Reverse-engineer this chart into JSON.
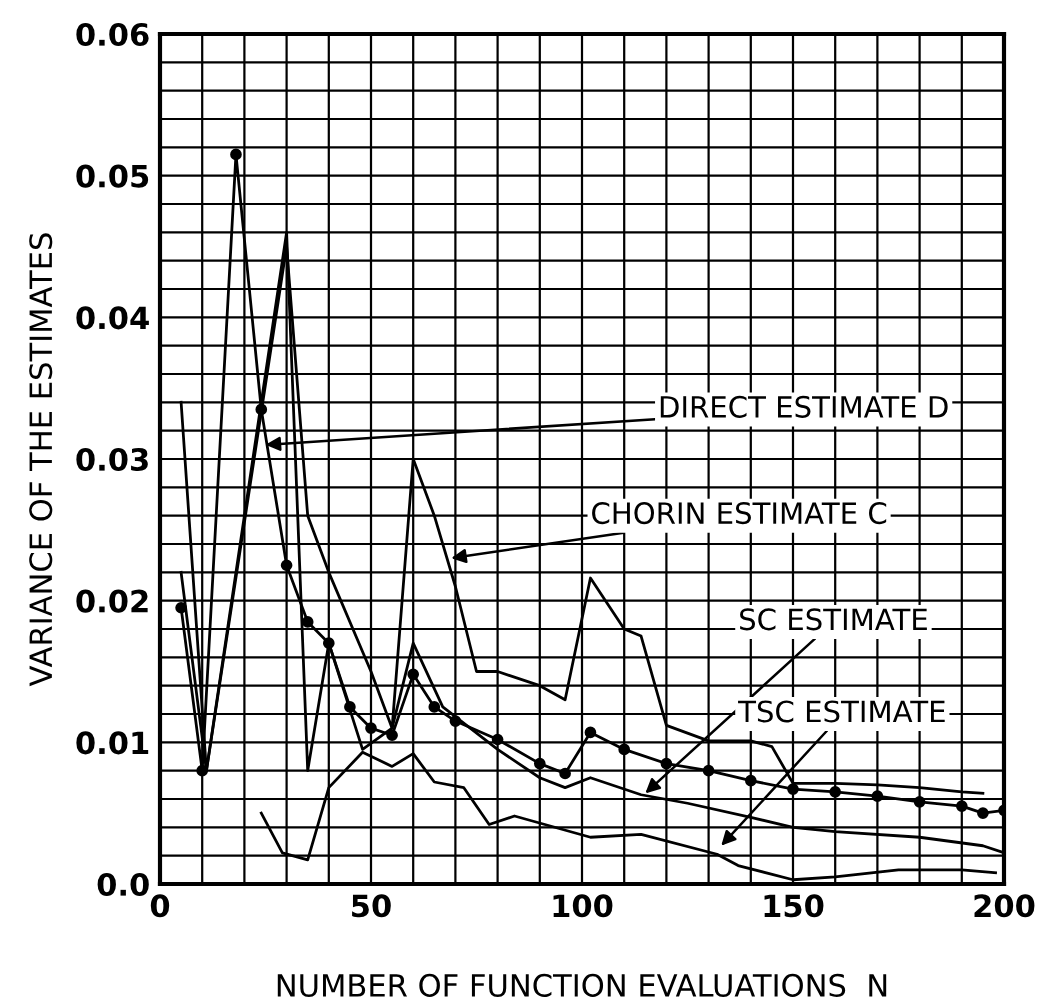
{
  "chart_data": {
    "type": "line",
    "xlabel": "NUMBER OF FUNCTION EVALUATIONS  N",
    "ylabel": "VARIANCE OF THE ESTIMATES",
    "xlim": [
      0,
      200
    ],
    "ylim": [
      0,
      0.06
    ],
    "xticks": [
      {
        "value": 0,
        "label": "0"
      },
      {
        "value": 10,
        "label": null
      },
      {
        "value": 20,
        "label": null
      },
      {
        "value": 30,
        "label": null
      },
      {
        "value": 40,
        "label": null
      },
      {
        "value": 50,
        "label": "50"
      },
      {
        "value": 60,
        "label": null
      },
      {
        "value": 70,
        "label": null
      },
      {
        "value": 80,
        "label": null
      },
      {
        "value": 90,
        "label": null
      },
      {
        "value": 100,
        "label": "100"
      },
      {
        "value": 110,
        "label": null
      },
      {
        "value": 120,
        "label": null
      },
      {
        "value": 130,
        "label": null
      },
      {
        "value": 140,
        "label": null
      },
      {
        "value": 150,
        "label": "150"
      },
      {
        "value": 160,
        "label": null
      },
      {
        "value": 170,
        "label": null
      },
      {
        "value": 180,
        "label": null
      },
      {
        "value": 190,
        "label": null
      },
      {
        "value": 200,
        "label": "200"
      }
    ],
    "yticks": [
      {
        "value": 0,
        "label": "0.0"
      },
      {
        "value": 0.002,
        "label": null
      },
      {
        "value": 0.004,
        "label": null
      },
      {
        "value": 0.006,
        "label": null
      },
      {
        "value": 0.008,
        "label": null
      },
      {
        "value": 0.01,
        "label": "0.01"
      },
      {
        "value": 0.012,
        "label": null
      },
      {
        "value": 0.014,
        "label": null
      },
      {
        "value": 0.016,
        "label": null
      },
      {
        "value": 0.018,
        "label": null
      },
      {
        "value": 0.02,
        "label": "0.02"
      },
      {
        "value": 0.022,
        "label": null
      },
      {
        "value": 0.024,
        "label": null
      },
      {
        "value": 0.026,
        "label": null
      },
      {
        "value": 0.028,
        "label": null
      },
      {
        "value": 0.03,
        "label": "0.03"
      },
      {
        "value": 0.032,
        "label": null
      },
      {
        "value": 0.034,
        "label": null
      },
      {
        "value": 0.036,
        "label": null
      },
      {
        "value": 0.038,
        "label": null
      },
      {
        "value": 0.04,
        "label": "0.04"
      },
      {
        "value": 0.042,
        "label": null
      },
      {
        "value": 0.044,
        "label": null
      },
      {
        "value": 0.046,
        "label": null
      },
      {
        "value": 0.048,
        "label": null
      },
      {
        "value": 0.05,
        "label": "0.05"
      },
      {
        "value": 0.052,
        "label": null
      },
      {
        "value": 0.054,
        "label": null
      },
      {
        "value": 0.056,
        "label": null
      },
      {
        "value": 0.058,
        "label": null
      },
      {
        "value": 0.06,
        "label": "0.06"
      }
    ],
    "grid": true,
    "series": [
      {
        "color": "#000000",
        "x": [
          5,
          10,
          18,
          24,
          30,
          35,
          40,
          45,
          50,
          55,
          60,
          65,
          70,
          80,
          90,
          96,
          102,
          110,
          120,
          130,
          140,
          150,
          160,
          170,
          180,
          190,
          195,
          200
        ],
        "values": [
          0.0195,
          0.008,
          0.0515,
          0.0335,
          0.0225,
          0.0185,
          0.017,
          0.0125,
          0.011,
          0.0105,
          0.0148,
          0.0125,
          0.0115,
          0.0102,
          0.0085,
          0.0078,
          0.0107,
          0.0095,
          0.0085,
          0.008,
          0.0073,
          0.0067,
          0.0065,
          0.0062,
          0.0058,
          0.0055,
          0.005,
          0.0052
        ],
        "marker": "circle"
      },
      {
        "color": "#000000",
        "x": [
          5,
          11,
          30,
          35,
          40,
          50,
          55,
          60,
          65,
          70,
          75,
          80,
          90,
          96,
          102,
          110,
          114,
          120,
          130,
          140,
          145,
          150,
          160,
          170,
          180,
          190,
          195
        ],
        "values": [
          0.034,
          0.008,
          0.045,
          0.026,
          0.022,
          0.015,
          0.011,
          0.03,
          0.026,
          0.021,
          0.015,
          0.015,
          0.014,
          0.013,
          0.0216,
          0.018,
          0.0175,
          0.0112,
          0.0101,
          0.0101,
          0.0097,
          0.0071,
          0.0071,
          0.007,
          0.0068,
          0.0065,
          0.0064
        ]
      },
      {
        "color": "#000000",
        "x": [
          5,
          11,
          30,
          35,
          40,
          48,
          55,
          60,
          67,
          80,
          90,
          96,
          102,
          114,
          125,
          140,
          150,
          160,
          180,
          195,
          200
        ],
        "values": [
          0.022,
          0.008,
          0.046,
          0.008,
          0.017,
          0.0095,
          0.011,
          0.017,
          0.0125,
          0.0095,
          0.0075,
          0.0068,
          0.0075,
          0.0063,
          0.0057,
          0.0047,
          0.004,
          0.0037,
          0.0033,
          0.0027,
          0.0022
        ]
      },
      {
        "color": "#000000",
        "x": [
          24,
          29,
          35,
          40,
          48,
          55,
          60,
          65,
          72,
          78,
          84,
          102,
          114,
          132,
          137,
          150,
          160,
          175,
          190,
          198
        ],
        "values": [
          0.005,
          0.0022,
          0.0017,
          0.0068,
          0.0093,
          0.0083,
          0.0092,
          0.0072,
          0.0068,
          0.0042,
          0.0048,
          0.0033,
          0.0035,
          0.0021,
          0.0013,
          0.0003,
          0.0005,
          0.001,
          0.001,
          0.0008
        ]
      }
    ],
    "annotations": [
      {
        "text": "DIRECT ESTIMATE D",
        "x": 25,
        "y": 0.031
      },
      {
        "text": "CHORIN ESTIMATE C",
        "x": 69,
        "y": 0.023
      },
      {
        "text": "SC ESTIMATE",
        "x": 115,
        "y": 0.0064
      },
      {
        "text": "TSC ESTIMATE",
        "x": 133,
        "y": 0.0027
      }
    ]
  }
}
